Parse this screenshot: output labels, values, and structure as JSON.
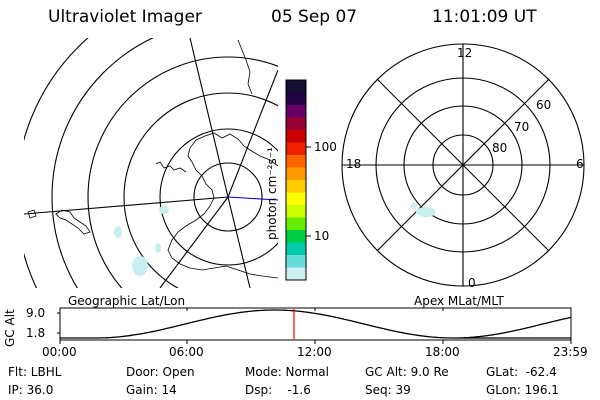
{
  "header": {
    "instrument": "Ultraviolet Imager",
    "date": "05 Sep 07",
    "time": "11:01:09 UT"
  },
  "colorbar": {
    "unit_label": "photon cm⁻²s⁻¹",
    "ticks": [
      "100",
      "10"
    ],
    "colors": [
      "#111133",
      "#220044",
      "#660066",
      "#990033",
      "#cc0000",
      "#ee2200",
      "#ff6600",
      "#ff9900",
      "#ffcc00",
      "#ffff00",
      "#ccff00",
      "#66ee00",
      "#00cc44",
      "#00ccaa",
      "#66dddd",
      "#ccf0f0"
    ]
  },
  "maps": {
    "left_label": "Geographic Lat/Lon",
    "right_label": "Apex MLat/MLT",
    "mlt_labels": {
      "top": "12",
      "left": "18",
      "right": "6",
      "bottom": "0"
    },
    "mlat_labels": [
      "60",
      "70",
      "80"
    ]
  },
  "alt_plot": {
    "ylabel": "GC Alt",
    "yticks": [
      "9.0",
      "1.8"
    ],
    "xticks": [
      "00:00",
      "06:00",
      "12:00",
      "18:00",
      "23:59"
    ],
    "marker_time": "11:01",
    "marker_color": "#ff0000"
  },
  "status": {
    "flt": "Flt: LBHL",
    "ip": "IP: 36.0",
    "door": "Door: Open",
    "gain": "Gain: 14",
    "mode": "Mode: Normal",
    "dsp": "Dsp:    -1.6",
    "gcalt": "GC Alt: 9.0 Re",
    "seq": "Seq: 39",
    "glat": "GLat:  -62.4",
    "glon": "GLon: 196.1"
  }
}
